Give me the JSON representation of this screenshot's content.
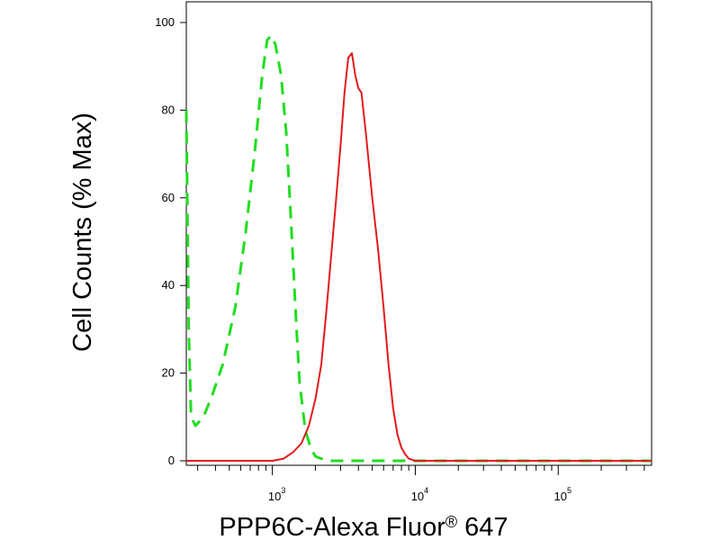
{
  "chart_data": {
    "type": "line",
    "xlabel": {
      "prefix": "PPP6C-Alexa Fluor",
      "reg_mark": "®",
      "suffix": " 647"
    },
    "ylabel": "Cell Counts (% Max)",
    "x_scale": "log",
    "xlim": [
      250,
      450000
    ],
    "ylim": [
      0,
      103
    ],
    "y_ticks": [
      0,
      20,
      40,
      60,
      80,
      100
    ],
    "x_tick_labels": [
      {
        "value": 1000,
        "base": "10",
        "exp": "3"
      },
      {
        "value": 10000,
        "base": "10",
        "exp": "4"
      },
      {
        "value": 100000,
        "base": "10",
        "exp": "5"
      }
    ],
    "grid": false,
    "legend": "none",
    "series": [
      {
        "color": "#22dd22",
        "style": "dashed",
        "x": [
          250,
          260,
          270,
          290,
          330,
          380,
          450,
          550,
          650,
          750,
          850,
          920,
          980,
          1050,
          1150,
          1250,
          1350,
          1450,
          1550,
          1700,
          1850,
          2000,
          2200,
          2500,
          3000,
          4000,
          6000,
          10000,
          50000,
          450000
        ],
        "y": [
          80,
          30,
          10,
          8,
          10,
          15,
          22,
          35,
          52,
          70,
          88,
          96,
          97,
          95,
          88,
          75,
          55,
          35,
          18,
          7,
          3,
          1,
          0.5,
          0,
          0,
          0,
          0,
          0,
          0,
          0
        ]
      },
      {
        "color": "#e31a1c",
        "style": "solid",
        "x": [
          250,
          1000,
          1200,
          1400,
          1600,
          1800,
          2000,
          2200,
          2400,
          2600,
          2800,
          3000,
          3200,
          3400,
          3600,
          3800,
          4000,
          4200,
          4500,
          5000,
          5500,
          6000,
          6500,
          7000,
          7500,
          8000,
          8500,
          9000,
          10000,
          11000,
          50000,
          450000
        ],
        "y": [
          0,
          0,
          0.5,
          2,
          4,
          8,
          14,
          22,
          35,
          48,
          60,
          72,
          84,
          92,
          93,
          88,
          85,
          84,
          75,
          60,
          48,
          35,
          22,
          12,
          6,
          3,
          1.5,
          0.5,
          0,
          0,
          0,
          0
        ]
      }
    ]
  }
}
